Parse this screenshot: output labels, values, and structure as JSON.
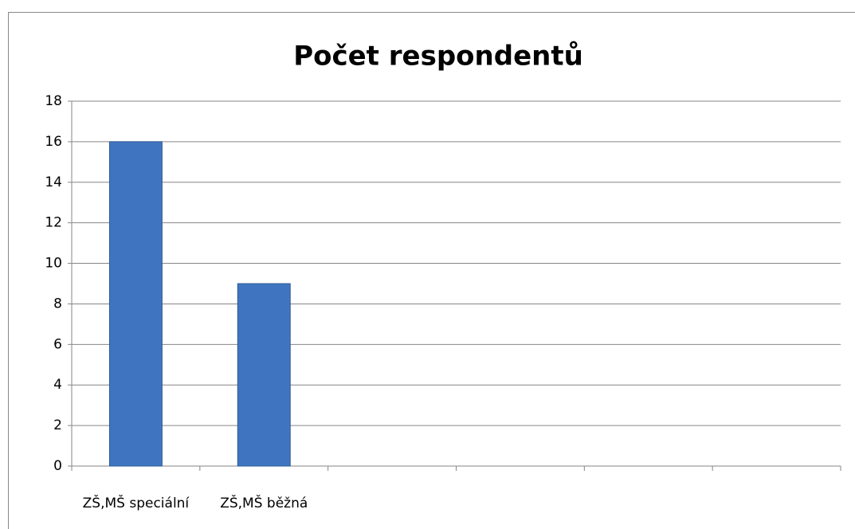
{
  "chart_data": {
    "type": "bar",
    "title": "Počet respondentů",
    "categories": [
      "ZŠ,MŠ speciální",
      "ZŠ,MŠ běžná",
      null,
      null,
      null,
      null
    ],
    "values": [
      16,
      9,
      null,
      null,
      null,
      null
    ],
    "color": "#3f75c0",
    "ylim": [
      0,
      18
    ],
    "yticks": [
      0,
      2,
      4,
      6,
      8,
      10,
      12,
      14,
      16,
      18
    ],
    "grid": true
  }
}
